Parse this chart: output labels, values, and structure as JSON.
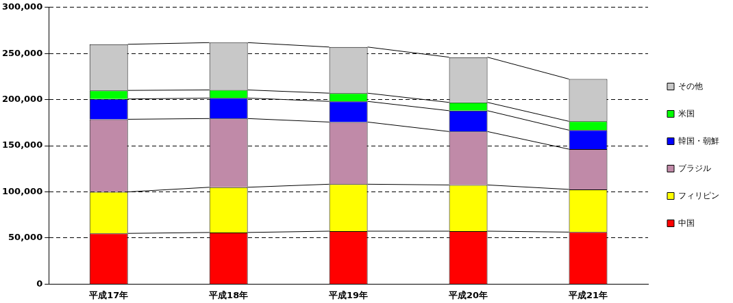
{
  "chart_data": {
    "type": "bar",
    "stacked": true,
    "categories": [
      "平成17年",
      "平成18年",
      "平成19年",
      "平成20年",
      "平成21年"
    ],
    "series": [
      {
        "name": "中国",
        "color": "#ff0000",
        "values": [
          55000,
          56000,
          57400,
          57400,
          56400
        ]
      },
      {
        "name": "フィリピン",
        "color": "#ffff00",
        "values": [
          45000,
          49000,
          50900,
          50100,
          46300
        ]
      },
      {
        "name": "ブラジル",
        "color": "#c08aa8",
        "values": [
          78700,
          74500,
          67400,
          57900,
          43600
        ]
      },
      {
        "name": "韓国・朝鮮",
        "color": "#0000ff",
        "values": [
          22000,
          22200,
          22400,
          22600,
          20600
        ]
      },
      {
        "name": "米国",
        "color": "#00ff00",
        "values": [
          9300,
          8800,
          8900,
          9000,
          9600
        ]
      },
      {
        "name": "その他",
        "color": "#c8c8c8",
        "values": [
          50000,
          51300,
          50000,
          49000,
          45800
        ]
      }
    ],
    "ylim": [
      0,
      300000
    ],
    "yticks": [
      {
        "value": 0,
        "label": "0"
      },
      {
        "value": 50000,
        "label": "50,000"
      },
      {
        "value": 100000,
        "label": "100,000"
      },
      {
        "value": 150000,
        "label": "150,000"
      },
      {
        "value": 200000,
        "label": "200,000"
      },
      {
        "value": 250000,
        "label": "250,000"
      },
      {
        "value": 300000,
        "label": "300,000"
      }
    ],
    "grid": "y",
    "legend": "right"
  }
}
